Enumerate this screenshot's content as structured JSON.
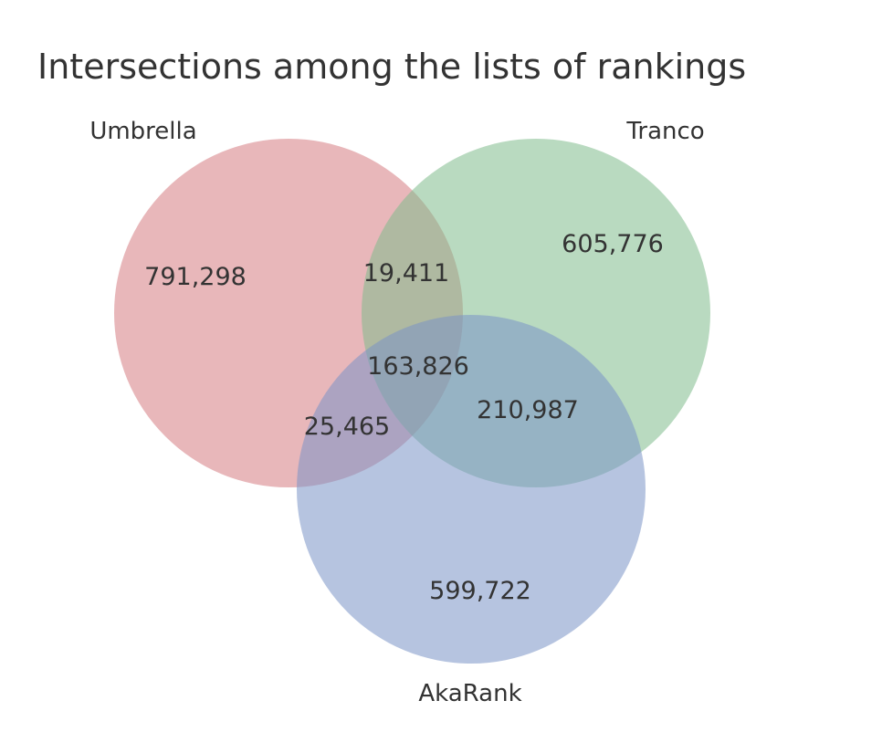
{
  "chart_data": {
    "type": "venn",
    "title": "Intersections among the lists of rankings",
    "sets": [
      {
        "name": "Umbrella",
        "color": "#d57c81"
      },
      {
        "name": "Tranco",
        "color": "#7fbc8c"
      },
      {
        "name": "AkaRank",
        "color": "#7a93c6"
      }
    ],
    "regions": [
      {
        "id": "umbrella_only",
        "sets": [
          "Umbrella"
        ],
        "value": "791,298"
      },
      {
        "id": "tranco_only",
        "sets": [
          "Tranco"
        ],
        "value": "605,776"
      },
      {
        "id": "akarank_only",
        "sets": [
          "AkaRank"
        ],
        "value": "599,722"
      },
      {
        "id": "umbrella_tranco",
        "sets": [
          "Umbrella",
          "Tranco"
        ],
        "value": "19,411"
      },
      {
        "id": "umbrella_akarank",
        "sets": [
          "Umbrella",
          "AkaRank"
        ],
        "value": "25,465"
      },
      {
        "id": "tranco_akarank",
        "sets": [
          "Tranco",
          "AkaRank"
        ],
        "value": "210,987"
      },
      {
        "id": "all_three",
        "sets": [
          "Umbrella",
          "Tranco",
          "AkaRank"
        ],
        "value": "163,826"
      }
    ]
  }
}
